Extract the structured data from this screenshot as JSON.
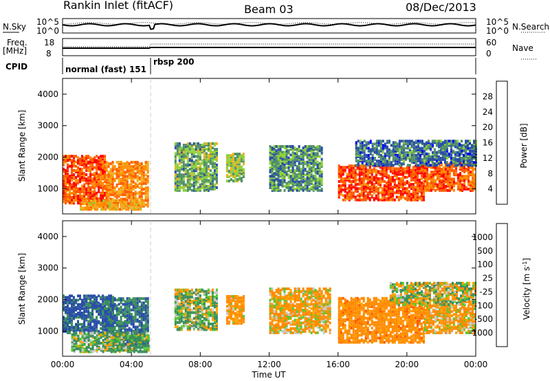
{
  "header": {
    "station": "Rankin Inlet (fitACF)",
    "beam": "Beam 03",
    "date": "08/Dec/2013"
  },
  "noise_panel": {
    "left_label": "N.Sky",
    "right_label": "N.Search",
    "left_ticks": [
      "10^5",
      "10^0"
    ],
    "right_ticks": [
      "10^5",
      "10^0"
    ]
  },
  "freq_panel": {
    "left_label": "Freq.",
    "left_unit": "[MHz]",
    "right_label": "Nave",
    "left_ticks": [
      "18",
      "8"
    ],
    "right_ticks": [
      "60",
      "0"
    ]
  },
  "cpid": {
    "label": "CPID",
    "modes": [
      {
        "name": "normal (fast) 151",
        "start": 0.0,
        "end": 5.1
      },
      {
        "name": "rbsp 200",
        "start": 5.1,
        "end": 24.0
      }
    ]
  },
  "colors": {
    "power_scale": [
      "#0000ff",
      "#2a4ea8",
      "#4f8f6a",
      "#8fd13a",
      "#f0b020",
      "#ff8c00",
      "#ff5a00",
      "#ff0000"
    ],
    "velocity_scale": [
      "#ff0000",
      "#ff5a00",
      "#ff8c00",
      "#ffa500",
      "#c8c8c8",
      "#58c832",
      "#3a8f5a",
      "#2a4ea8",
      "#1010c0"
    ]
  },
  "chart_data": [
    {
      "type": "heatmap",
      "name": "power",
      "xlabel": "",
      "ylabel": "Slant Range [km]",
      "xlim": [
        0,
        24
      ],
      "ylim": [
        200,
        4500
      ],
      "x_ticks": [
        "00:00",
        "04:00",
        "08:00",
        "12:00",
        "16:00",
        "20:00",
        "00:00"
      ],
      "y_ticks": [
        "1000",
        "2000",
        "3000",
        "4000"
      ],
      "colorbar_label": "Power [dB]",
      "colorbar_ticks": [
        "28",
        "24",
        "20",
        "16",
        "12",
        "8",
        "4"
      ],
      "regions": [
        {
          "x": [
            0.0,
            2.5
          ],
          "y": [
            500,
            2000
          ],
          "value": 26
        },
        {
          "x": [
            2.5,
            5.0
          ],
          "y": [
            400,
            1800
          ],
          "value": 22
        },
        {
          "x": [
            1.0,
            4.5
          ],
          "y": [
            300,
            600
          ],
          "value": 20
        },
        {
          "x": [
            6.5,
            9.0
          ],
          "y": [
            900,
            2400
          ],
          "value": 12
        },
        {
          "x": [
            9.5,
            10.5
          ],
          "y": [
            1200,
            2100
          ],
          "value": 14
        },
        {
          "x": [
            12.0,
            15.0
          ],
          "y": [
            900,
            2300
          ],
          "value": 10
        },
        {
          "x": [
            16.0,
            21.0
          ],
          "y": [
            600,
            1700
          ],
          "value": 27
        },
        {
          "x": [
            21.0,
            24.0
          ],
          "y": [
            900,
            1800
          ],
          "value": 25
        },
        {
          "x": [
            17.0,
            24.0
          ],
          "y": [
            1700,
            2500
          ],
          "value": 8
        }
      ]
    },
    {
      "type": "heatmap",
      "name": "velocity",
      "xlabel": "Time UT",
      "ylabel": "Slant Range [km]",
      "xlim": [
        0,
        24
      ],
      "ylim": [
        200,
        4500
      ],
      "x_ticks": [
        "00:00",
        "04:00",
        "08:00",
        "12:00",
        "16:00",
        "20:00",
        "00:00"
      ],
      "y_ticks": [
        "1000",
        "2000",
        "3000",
        "4000"
      ],
      "colorbar_label": "Velocity [m s^-1]",
      "colorbar_ticks": [
        "1000",
        "500",
        "100",
        "25",
        "-25",
        "-100",
        "-500",
        "-1000"
      ],
      "regions": [
        {
          "x": [
            0.0,
            3.0
          ],
          "y": [
            900,
            2100
          ],
          "value": 600
        },
        {
          "x": [
            2.5,
            5.0
          ],
          "y": [
            500,
            2000
          ],
          "value": 500
        },
        {
          "x": [
            0.5,
            5.0
          ],
          "y": [
            300,
            900
          ],
          "value": 150
        },
        {
          "x": [
            6.5,
            9.0
          ],
          "y": [
            1000,
            2300
          ],
          "value": 100
        },
        {
          "x": [
            9.5,
            10.5
          ],
          "y": [
            1200,
            2100
          ],
          "value": -200
        },
        {
          "x": [
            12.0,
            15.5
          ],
          "y": [
            900,
            2300
          ],
          "value": -150
        },
        {
          "x": [
            16.0,
            21.0
          ],
          "y": [
            600,
            2000
          ],
          "value": -300
        },
        {
          "x": [
            21.0,
            24.0
          ],
          "y": [
            900,
            1800
          ],
          "value": -150
        },
        {
          "x": [
            19.0,
            24.0
          ],
          "y": [
            1800,
            2500
          ],
          "value": 0
        }
      ]
    }
  ]
}
